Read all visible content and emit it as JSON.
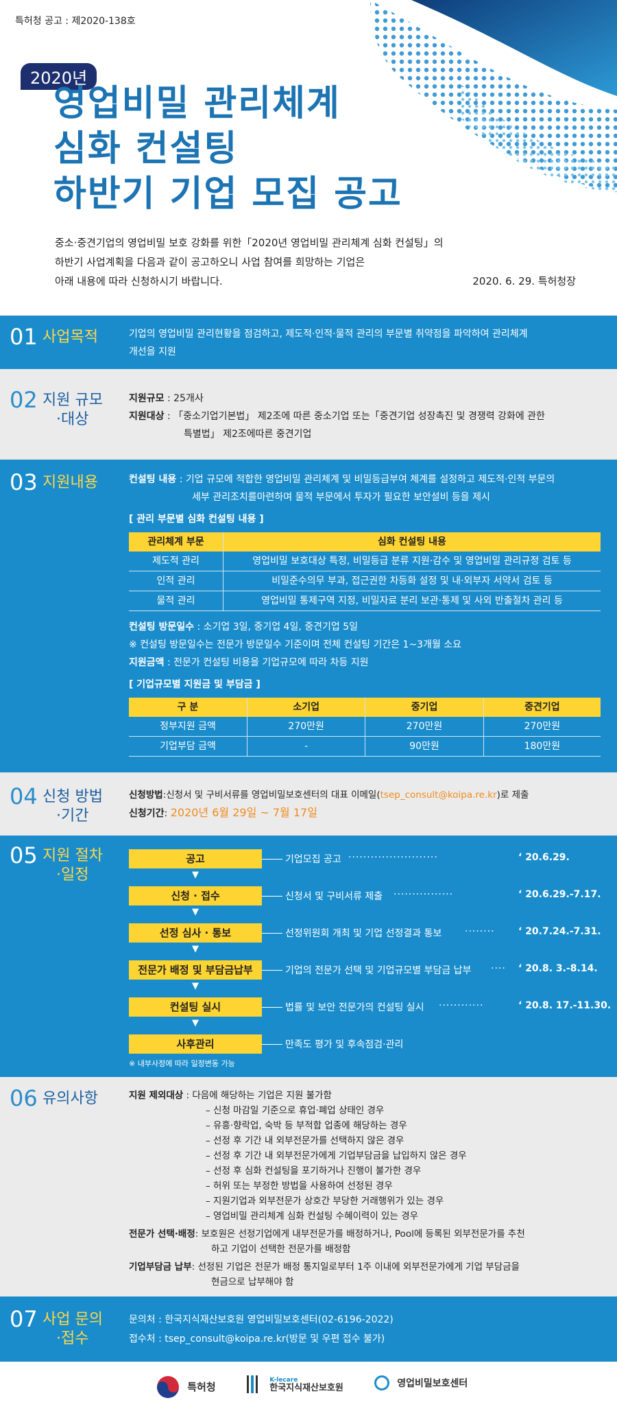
{
  "header": {
    "announce_no": "특허청 공고 : 제2020-138호",
    "year_badge": "2020년",
    "title_lines": [
      "영업비밀 관리체계",
      "심화 컨설팅",
      "하반기 기업 모집 공고"
    ],
    "intro_lines": [
      "중소·중견기업의 영업비밀 보호 강화를 위한「2020년 영업비밀 관리체계 심화 컨설팅」의",
      "하반기 사업계획을 다음과 같이 공고하오니 사업 참여를 희망하는 기업은",
      "아래 내용에 따라 신청하시기 바랍니다."
    ],
    "date_issuer": "2020. 6. 29. 특허청장"
  },
  "s1": {
    "num": "01",
    "title": "사업목적",
    "text_lines": [
      "기업의 영업비밀 관리현황을 점검하고, 제도적·인적·물적 관리의 부문별 취약점을 파악하여 관리체계",
      "개선을 지원"
    ]
  },
  "s2": {
    "num": "02",
    "title_lines": [
      "지원 규모",
      "·대상"
    ],
    "scale_label": "지원규모",
    "scale_value": " : 25개사",
    "target_label": "지원대상",
    "target_value": " : 「중소기업기본법」 제2조에 따른 중소기업 또는「중견기업 성장촉진 및 경쟁력 강화에 관한",
    "target_value2": "특별법」 제2조에따른 중견기업"
  },
  "s3": {
    "num": "03",
    "title": "지원내용",
    "consult_label": "컨설팅 내용",
    "consult_value": " : 기업 규모에 적합한 영업비밀 관리체계 및 비밀등급부여 체계를 설정하고 제도적·인적 부문의",
    "consult_value2": "세부 관리조치를마련하며 물적 부문에서 투자가 필요한 보안설비 등을 제시",
    "table1_title": "[ 관리 부문별 심화 컨설팅 내용 ]",
    "table1_headers": [
      "관리체계 부문",
      "심화 컨설팅 내용"
    ],
    "table1_rows": [
      [
        "제도적 관리",
        "영업비밀 보호대상 특정, 비밀등급 분류 지원·감수 및 영업비밀 관리규정 검토 등"
      ],
      [
        "인적 관리",
        "비밀준수의무 부과, 접근권한 차등화 설정 및 내·외부자 서약서 검토 등"
      ],
      [
        "물적 관리",
        "영업비밀 통제구역 지정, 비밀자료 분리 보관·통제 및 사외 반출절차 관리 등"
      ]
    ],
    "visit_label": "컨설팅 방문일수",
    "visit_value": " : 소기업 3일, 중기업 4일, 중견기업 5일",
    "visit_note": "※ 컨설팅 방문일수는 전문가 방문일수 기준이며 전체 컨설팅 기간은 1~3개월 소요",
    "amount_label": "지원금액",
    "amount_value": " : 전문가 컨설팅 비용을 기업규모에 따라 차등 지원",
    "table2_title": "[ 기업규모별 지원금 및 부담금 ]",
    "table2_headers": [
      "구   분",
      "소기업",
      "중기업",
      "중견기업"
    ],
    "table2_rows": [
      [
        "정부지원 금액",
        "270만원",
        "270만원",
        "270만원"
      ],
      [
        "기업부담 금액",
        "-",
        "90만원",
        "180만원"
      ]
    ]
  },
  "s4": {
    "num": "04",
    "title_lines": [
      "신청 방법",
      "·기간"
    ],
    "method_label": "신청방법",
    "method_value": ":신청서 및 구비서류를 영업비밀보호센터의 대표 이메일(",
    "method_email": "tsep_consult@koipa.re.kr",
    "method_tail": ")로 제출",
    "period_label": "신청기간",
    "period_sep": ": ",
    "period_value": "2020년 6월 29일 ~ 7월 17일"
  },
  "s5": {
    "num": "05",
    "title_lines": [
      "지원 절차",
      "·일정"
    ],
    "steps": [
      {
        "label": "공고",
        "desc": "기업모집 공고",
        "date": "‘ 20.6.29."
      },
      {
        "label": "신청 · 접수",
        "desc": "신청서 및 구비서류 제출",
        "date": "‘ 20.6.29.-7.17."
      },
      {
        "label": "선정 심사 · 통보",
        "desc": "선정위원회 개최 및 기업 선정결과 통보",
        "date": "‘ 20.7.24.-7.31."
      },
      {
        "label": "전문가 배정 및 부담금납부",
        "desc": "기업의 전문가 선택 및 기업규모별 부담금 납부",
        "date": "‘ 20.8.  3.-8.14."
      },
      {
        "label": "컨설팅 실시",
        "desc": "법률 및 보안 전문가의 컨설팅 실시",
        "date": "‘ 20.8. 17.-11.30."
      },
      {
        "label": "사후관리",
        "desc": "만족도 평가 및 후속점검·관리",
        "date": ""
      }
    ],
    "note": "※ 내부사정에 따라 일정변동 가능"
  },
  "s6": {
    "num": "06",
    "title": "유의사항",
    "excl_label": "지원 제외대상",
    "excl_value": " : 다음에 해당하는 기업은 지원 불가함",
    "excl_items": [
      "– 신청 마감일 기준으로 휴업·폐업 상태인 경우",
      "– 유흥·향락업, 숙박 등 부적합 업종에 해당하는 경우",
      "– 선정 후 기간 내 외부전문가를 선택하지 않은 경우",
      "– 선정 후 기간 내 외부전문가에게 기업부담금을 납입하지 않은 경우",
      "– 선정 후 심화 컨설팅을 포기하거나 진행이 불가한 경우",
      "– 허위 또는 부정한 방법을 사용하여 선정된 경우",
      "– 지원기업과 외부전문가 상호간 부당한 거래행위가 있는 경우",
      "– 영업비밀 관리체계 심화 컨설팅 수혜이력이 있는 경우"
    ],
    "expert_label": "전문가 선택·배정",
    "expert_value": ": 보호원은 선정기업에게 내부전문가를 배정하거나, Pool에 등록된 외부전문가를 추천",
    "expert_value2": "하고 기업이 선택한 전문가를 배정함",
    "pay_label": "기업부담금 납부",
    "pay_value": ": 선정된 기업은 전문가 배정 통지일로부터 1주 이내에 외부전문가에게 기업 부담금을",
    "pay_value2": "현금으로 납부해야 함"
  },
  "s7": {
    "num": "07",
    "title_lines": [
      "사업 문의",
      "·접수"
    ],
    "contact": "문의처 : 한국지식재산보호원 영업비밀보호센터(02-6196-2022)",
    "receive": "접수처 : tsep_consult@koipa.re.kr(방문 및 우편 접수 불가)"
  },
  "footer": {
    "logo1": "특허청",
    "logo2_small": "K-lecare",
    "logo2": "한국지식재산보호원",
    "logo3": "영업비밀보호센터"
  },
  "colors": {
    "blue": "#1a8ccb",
    "gray": "#ebebeb",
    "yellow": "#fdd431",
    "navy": "#1d2f6e",
    "title_blue": "#1c74b3"
  }
}
